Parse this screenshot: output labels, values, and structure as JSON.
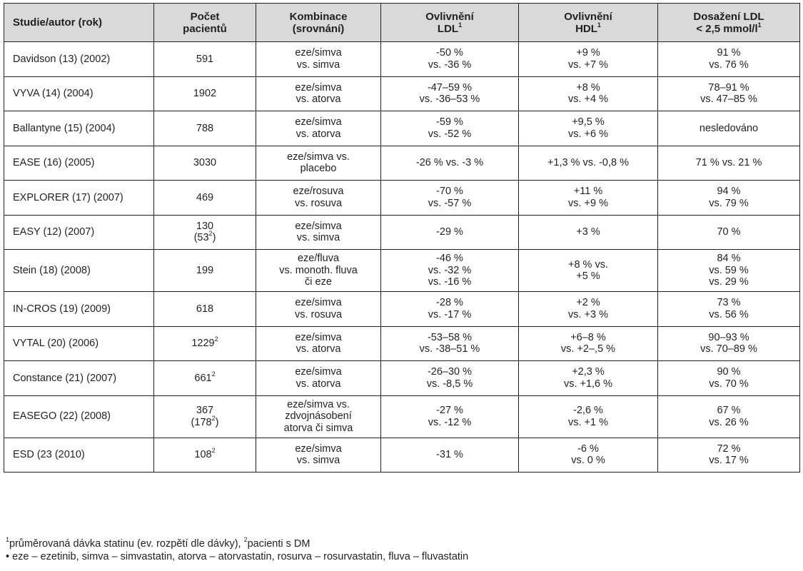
{
  "table": {
    "headers": [
      [
        {
          "t": "Studie/autor (rok)"
        }
      ],
      [
        {
          "t": "Počet"
        },
        {
          "t": "pacientů"
        }
      ],
      [
        {
          "t": "Kombinace"
        },
        {
          "t": "(srovnání)"
        }
      ],
      [
        {
          "t": "Ovlivnění"
        },
        {
          "t": "LDL",
          "sup": "1"
        }
      ],
      [
        {
          "t": "Ovlivnění"
        },
        {
          "t": "HDL",
          "sup": "1"
        }
      ],
      [
        {
          "t": "Dosažení LDL"
        },
        {
          "t": "< 2,5 mmol/l",
          "sup": "1"
        }
      ]
    ],
    "rows": [
      {
        "lines": 2,
        "cells": [
          [
            {
              "t": "Davidson (13) (2002)"
            }
          ],
          [
            {
              "t": "591"
            }
          ],
          [
            {
              "t": "eze/simva"
            },
            {
              "t": "vs. simva"
            }
          ],
          [
            {
              "t": "-50 %"
            },
            {
              "t": "vs. -36 %"
            }
          ],
          [
            {
              "t": "+9 %"
            },
            {
              "t": "vs. +7 %"
            }
          ],
          [
            {
              "t": "91 %"
            },
            {
              "t": "vs. 76 %"
            }
          ]
        ]
      },
      {
        "lines": 2,
        "cells": [
          [
            {
              "t": "VYVA (14) (2004)"
            }
          ],
          [
            {
              "t": "1902"
            }
          ],
          [
            {
              "t": "eze/simva"
            },
            {
              "t": "vs. atorva"
            }
          ],
          [
            {
              "t": "-47–59 %"
            },
            {
              "t": "vs. -36–53 %"
            }
          ],
          [
            {
              "t": "+8 %"
            },
            {
              "t": "vs. +4 %"
            }
          ],
          [
            {
              "t": "78–91 %"
            },
            {
              "t": "vs. 47–85 %"
            }
          ]
        ]
      },
      {
        "lines": 2,
        "cells": [
          [
            {
              "t": "Ballantyne (15) (2004)"
            }
          ],
          [
            {
              "t": "788"
            }
          ],
          [
            {
              "t": "eze/simva"
            },
            {
              "t": "vs. atorva"
            }
          ],
          [
            {
              "t": "-59 %"
            },
            {
              "t": "vs. -52 %"
            }
          ],
          [
            {
              "t": "+9,5 %"
            },
            {
              "t": "vs. +6 %"
            }
          ],
          [
            {
              "t": "nesledováno"
            }
          ]
        ]
      },
      {
        "lines": 2,
        "cells": [
          [
            {
              "t": "EASE (16) (2005)"
            }
          ],
          [
            {
              "t": "3030"
            }
          ],
          [
            {
              "t": "eze/simva vs."
            },
            {
              "t": "placebo"
            }
          ],
          [
            {
              "t": "-26 % vs. -3 %"
            }
          ],
          [
            {
              "t": "+1,3 % vs. -0,8 %"
            }
          ],
          [
            {
              "t": "71 % vs. 21 %"
            }
          ]
        ]
      },
      {
        "lines": 2,
        "cells": [
          [
            {
              "t": "EXPLORER (17) (2007)"
            }
          ],
          [
            {
              "t": "469"
            }
          ],
          [
            {
              "t": "eze/rosuva"
            },
            {
              "t": "vs. rosuva"
            }
          ],
          [
            {
              "t": "-70 %"
            },
            {
              "t": "vs. -57 %"
            }
          ],
          [
            {
              "t": "+11 %"
            },
            {
              "t": "vs. +9 %"
            }
          ],
          [
            {
              "t": "94 %"
            },
            {
              "t": "vs. 79 %"
            }
          ]
        ]
      },
      {
        "lines": 2,
        "cells": [
          [
            {
              "t": "EASY (12) (2007)"
            }
          ],
          [
            {
              "t": "130"
            },
            {
              "t": "(53",
              "sup": "2",
              "after": ")"
            }
          ],
          [
            {
              "t": "eze/simva"
            },
            {
              "t": "vs. simva"
            }
          ],
          [
            {
              "t": "-29 %"
            }
          ],
          [
            {
              "t": "+3 %"
            }
          ],
          [
            {
              "t": "70 %"
            }
          ]
        ]
      },
      {
        "lines": 3,
        "cells": [
          [
            {
              "t": "Stein (18) (2008)"
            }
          ],
          [
            {
              "t": "199"
            }
          ],
          [
            {
              "t": "eze/fluva"
            },
            {
              "t": "vs. monoth. fluva"
            },
            {
              "t": "či eze"
            }
          ],
          [
            {
              "t": "-46 %"
            },
            {
              "t": "vs. -32 %"
            },
            {
              "t": "vs. -16 %"
            }
          ],
          [
            {
              "t": "+8 % vs."
            },
            {
              "t": "+5 %"
            }
          ],
          [
            {
              "t": "84 %"
            },
            {
              "t": "vs. 59 %"
            },
            {
              "t": "vs. 29 %"
            }
          ]
        ]
      },
      {
        "lines": 2,
        "cells": [
          [
            {
              "t": "IN-CROS (19) (2009)"
            }
          ],
          [
            {
              "t": "618"
            }
          ],
          [
            {
              "t": "eze/simva"
            },
            {
              "t": "vs. rosuva"
            }
          ],
          [
            {
              "t": "-28 %"
            },
            {
              "t": "vs. -17 %"
            }
          ],
          [
            {
              "t": "+2 %"
            },
            {
              "t": "vs. +3 %"
            }
          ],
          [
            {
              "t": "73 %"
            },
            {
              "t": "vs. 56 %"
            }
          ]
        ]
      },
      {
        "lines": 2,
        "cells": [
          [
            {
              "t": "VYTAL (20) (2006)"
            }
          ],
          [
            {
              "t": "1229",
              "sup": "2"
            }
          ],
          [
            {
              "t": "eze/simva"
            },
            {
              "t": "vs. atorva"
            }
          ],
          [
            {
              "t": "-53–58 %"
            },
            {
              "t": "vs. -38–51 %"
            }
          ],
          [
            {
              "t": "+6–8 %"
            },
            {
              "t": "vs. +2–,5 %"
            }
          ],
          [
            {
              "t": "90–93 %"
            },
            {
              "t": "vs. 70–89 %"
            }
          ]
        ]
      },
      {
        "lines": 2,
        "cells": [
          [
            {
              "t": "Constance (21) (2007)"
            }
          ],
          [
            {
              "t": "661",
              "sup": "2"
            }
          ],
          [
            {
              "t": "eze/simva"
            },
            {
              "t": "vs. atorva"
            }
          ],
          [
            {
              "t": "-26–30 %"
            },
            {
              "t": "vs. -8,5 %"
            }
          ],
          [
            {
              "t": "+2,3 %"
            },
            {
              "t": "vs. +1,6 %"
            }
          ],
          [
            {
              "t": "90 %"
            },
            {
              "t": "vs. 70 %"
            }
          ]
        ]
      },
      {
        "lines": 3,
        "cells": [
          [
            {
              "t": "EASEGO (22) (2008)"
            }
          ],
          [
            {
              "t": "367"
            },
            {
              "t": "(178",
              "sup": "2",
              "after": ")"
            }
          ],
          [
            {
              "t": "eze/simva vs."
            },
            {
              "t": "zdvojnásobení"
            },
            {
              "t": "atorva či simva"
            }
          ],
          [
            {
              "t": "-27 %"
            },
            {
              "t": "vs. -12 %"
            }
          ],
          [
            {
              "t": "-2,6 %"
            },
            {
              "t": "vs. +1 %"
            }
          ],
          [
            {
              "t": "67 %"
            },
            {
              "t": "vs. 26 %"
            }
          ]
        ]
      },
      {
        "lines": 2,
        "cells": [
          [
            {
              "t": "ESD (23 (2010)"
            }
          ],
          [
            {
              "t": "108",
              "sup": "2"
            }
          ],
          [
            {
              "t": "eze/simva"
            },
            {
              "t": "vs. simva"
            }
          ],
          [
            {
              "t": "-31 %"
            }
          ],
          [
            {
              "t": "-6 %"
            },
            {
              "t": "vs. 0 %"
            }
          ],
          [
            {
              "t": "72 %"
            },
            {
              "t": "vs. 17 %"
            }
          ]
        ]
      }
    ]
  },
  "footnotes": [
    {
      "sup1": "1",
      "text1": "průměrovaná dávka statinu (ev. rozpětí dle dávky), ",
      "sup2": "2",
      "text2": "pacienti s DM"
    },
    {
      "text1": "• eze – ezetinib, simva – simvastatin, atorva – atorvastatin, rosurva – rosurvastatin, fluva – fluvastatin"
    }
  ]
}
